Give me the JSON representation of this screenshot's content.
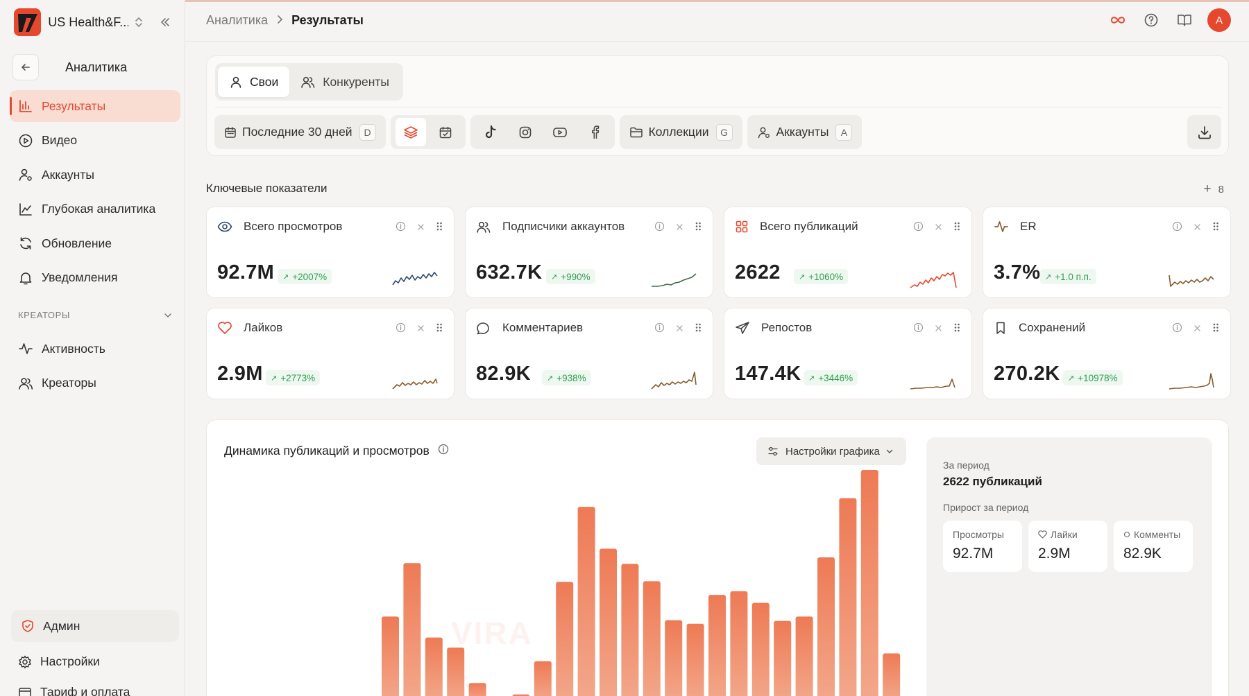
{
  "workspace": {
    "name": "US Health&F..."
  },
  "sidebar": {
    "back_title": "Аналитика",
    "items": [
      {
        "label": "Результаты",
        "icon": "bar-chart-icon",
        "active": true
      },
      {
        "label": "Видео",
        "icon": "play-circle-icon"
      },
      {
        "label": "Аккаунты",
        "icon": "user-cog-icon"
      },
      {
        "label": "Глубокая аналитика",
        "icon": "line-chart-icon"
      },
      {
        "label": "Обновление",
        "icon": "refresh-icon"
      },
      {
        "label": "Уведомления",
        "icon": "bell-icon"
      }
    ],
    "section_label": "КРЕАТОРЫ",
    "section_items": [
      {
        "label": "Активность",
        "icon": "activity-icon"
      },
      {
        "label": "Креаторы",
        "icon": "users-icon"
      }
    ],
    "admin": "Админ",
    "settings": "Настройки",
    "billing": "Тариф и оплата"
  },
  "header": {
    "breadcrumb_root": "Аналитика",
    "breadcrumb_current": "Результаты",
    "avatar_letter": "A"
  },
  "filters": {
    "tabs": [
      "Свои",
      "Конкуренты"
    ],
    "active_tab": "Свои",
    "period_label": "Последние 30 дней",
    "period_key": "D",
    "collections_label": "Коллекции",
    "collections_key": "G",
    "accounts_label": "Аккаунты",
    "accounts_key": "A",
    "platforms": [
      "tiktok-icon",
      "instagram-icon",
      "youtube-icon",
      "facebook-icon"
    ]
  },
  "metrics": {
    "title": "Ключевые показатели",
    "count": "8",
    "cards": [
      {
        "label": "Всего просмотров",
        "value": "92.7M",
        "delta": "+2007%",
        "icon": "eye-icon",
        "spark_color": "#2f4a6e"
      },
      {
        "label": "Подписчики аккаунтов",
        "value": "632.7K",
        "delta": "+990%",
        "icon": "users-icon",
        "spark_color": "#3d6b4a"
      },
      {
        "label": "Всего публикаций",
        "value": "2622",
        "delta": "+1060%",
        "icon": "grid-icon",
        "spark_color": "#e5482f"
      },
      {
        "label": "ER",
        "value": "3.7%",
        "delta": "+1.0 п.п.",
        "icon": "pulse-icon",
        "spark_color": "#8a5a2b"
      },
      {
        "label": "Лайков",
        "value": "2.9M",
        "delta": "+2773%",
        "icon": "heart-icon",
        "spark_color": "#8a5a2b"
      },
      {
        "label": "Комментариев",
        "value": "82.9K",
        "delta": "+938%",
        "icon": "comment-icon",
        "spark_color": "#8a5a2b"
      },
      {
        "label": "Репостов",
        "value": "147.4K",
        "delta": "+3446%",
        "icon": "send-icon",
        "spark_color": "#8a5a2b"
      },
      {
        "label": "Сохранений",
        "value": "270.2K",
        "delta": "+10978%",
        "icon": "bookmark-icon",
        "spark_color": "#8a5a2b"
      }
    ]
  },
  "chart": {
    "title": "Динамика публикаций и просмотров",
    "settings_label": "Настройки графика",
    "watermark": "VIRA"
  },
  "chart_data": {
    "type": "bar",
    "series": [
      {
        "values": [
          112,
          186,
          83,
          69,
          20,
          0,
          4,
          50,
          160,
          264,
          206,
          185,
          161,
          107,
          102,
          142,
          147,
          131,
          106,
          112,
          194,
          276,
          315,
          61
        ]
      }
    ],
    "color": "#ee7a55"
  },
  "period": {
    "label": "За период",
    "value": "2622 публикаций",
    "growth_label": "Прирост за период",
    "stats": [
      {
        "label": "Просмотры",
        "value": "92.7M",
        "icon": ""
      },
      {
        "label": "Лайки",
        "value": "2.9M",
        "icon": "heart-icon"
      },
      {
        "label": "Комменты",
        "value": "82.9K",
        "icon": "comment-icon"
      }
    ]
  }
}
